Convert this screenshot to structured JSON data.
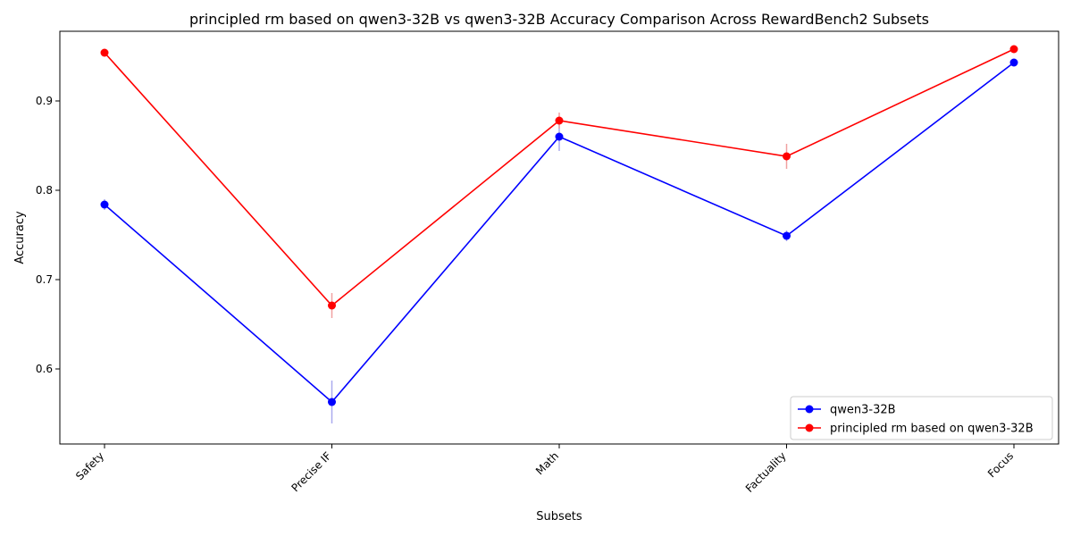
{
  "chart_data": {
    "type": "line",
    "title": "principled rm based on qwen3-32B  vs qwen3-32B Accuracy Comparison Across RewardBench2 Subsets",
    "xlabel": "Subsets",
    "ylabel": "Accuracy",
    "categories": [
      "Safety",
      "Precise IF",
      "Math",
      "Factuality",
      "Focus"
    ],
    "ylim": [
      0.516,
      0.978
    ],
    "yticks": [
      0.6,
      0.7,
      0.8,
      0.9
    ],
    "ytick_labels": [
      "0.6",
      "0.7",
      "0.8",
      "0.9"
    ],
    "grid": false,
    "legend_position": "lower-right",
    "series": [
      {
        "name": "qwen3-32B",
        "color": "#0000ff",
        "errcolor": "#aaaaee",
        "values": [
          0.784,
          0.563,
          0.86,
          0.749,
          0.943
        ],
        "errors": [
          0.006,
          0.024,
          0.016,
          0.006,
          0.004
        ]
      },
      {
        "name": "principled rm based on qwen3-32B",
        "color": "#ff0000",
        "errcolor": "#f0a0a0",
        "values": [
          0.954,
          0.671,
          0.878,
          0.838,
          0.958
        ],
        "errors": [
          0.004,
          0.014,
          0.009,
          0.014,
          0.003
        ]
      }
    ]
  }
}
